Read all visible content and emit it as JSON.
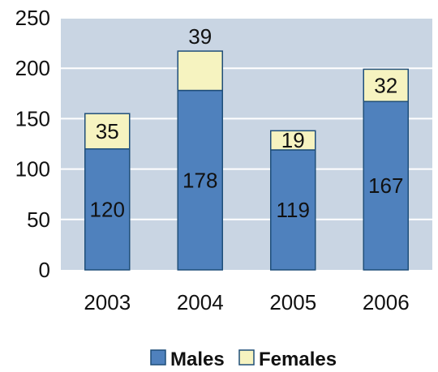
{
  "chart_data": {
    "type": "bar",
    "stacked": true,
    "categories": [
      "2003",
      "2004",
      "2005",
      "2006"
    ],
    "series": [
      {
        "name": "Males",
        "values": [
          120,
          178,
          119,
          167
        ],
        "color": "#4f81bd"
      },
      {
        "name": "Females",
        "values": [
          35,
          39,
          19,
          32
        ],
        "color": "#f6f3c0"
      }
    ],
    "ylim": [
      0,
      250
    ],
    "yticks": [
      "0",
      "50",
      "100",
      "150",
      "200",
      "250"
    ],
    "grid": true,
    "plot_background": "#c9d5e3",
    "bar_border": "#1f4e79",
    "legend": {
      "position": "bottom"
    }
  }
}
